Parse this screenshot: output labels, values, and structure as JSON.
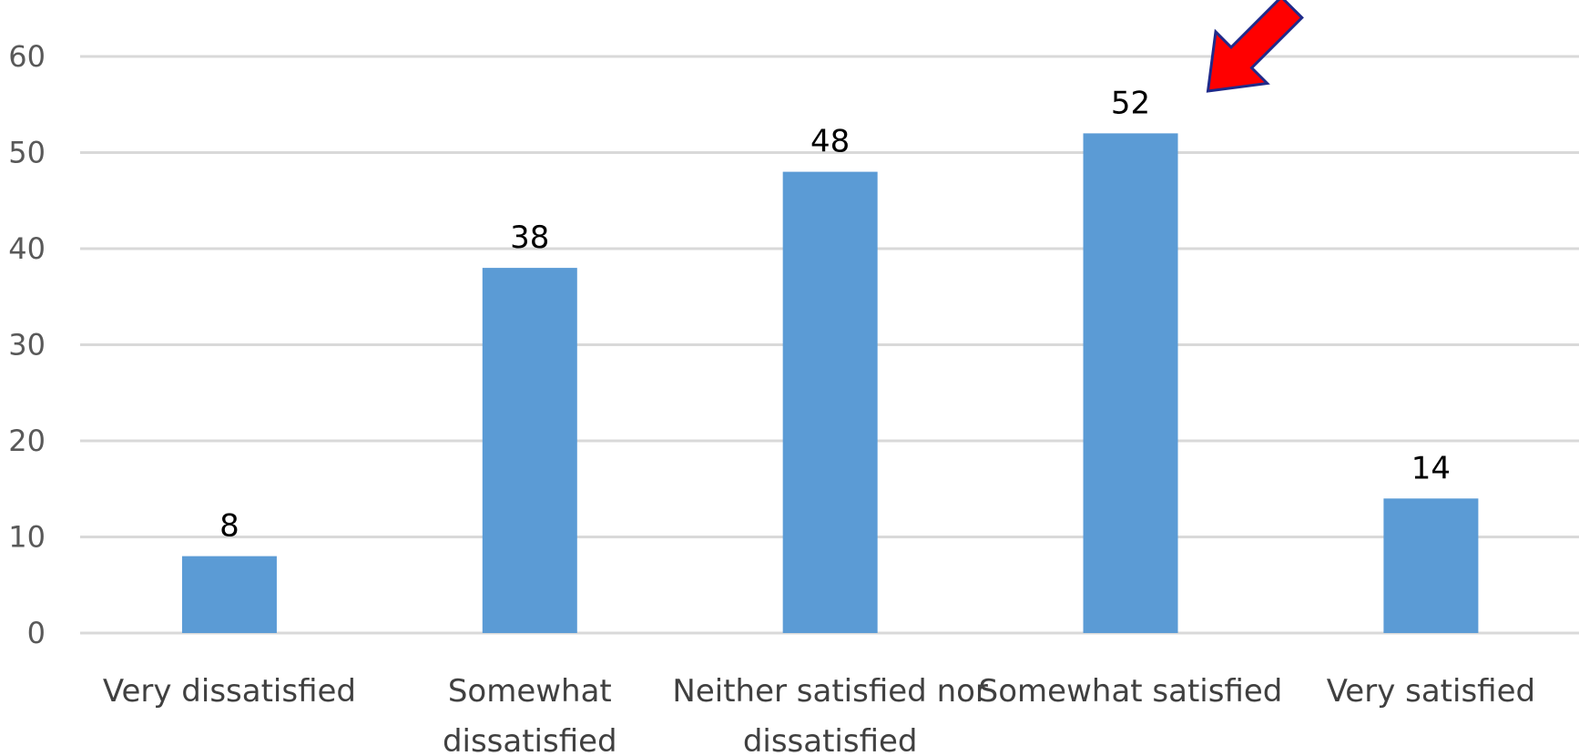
{
  "chart_data": {
    "type": "bar",
    "categories": [
      [
        "Very dissatisfied"
      ],
      [
        "Somewhat",
        "dissatisfied"
      ],
      [
        "Neither satisfied nor",
        "dissatisfied"
      ],
      [
        "Somewhat satisfied"
      ],
      [
        "Very satisfied"
      ]
    ],
    "values": [
      8,
      38,
      48,
      52,
      14
    ],
    "data_labels": [
      "8",
      "38",
      "48",
      "52",
      "14"
    ],
    "ylim": [
      0,
      60
    ],
    "yticks": [
      "0",
      "10",
      "20",
      "30",
      "40",
      "50",
      "60"
    ],
    "grid": true,
    "legend": "none",
    "highlight_index": 3,
    "colors": {
      "bar": "#5b9bd5",
      "arrow": "#ff0000",
      "arrow_outline": "#1f2a8a"
    }
  }
}
